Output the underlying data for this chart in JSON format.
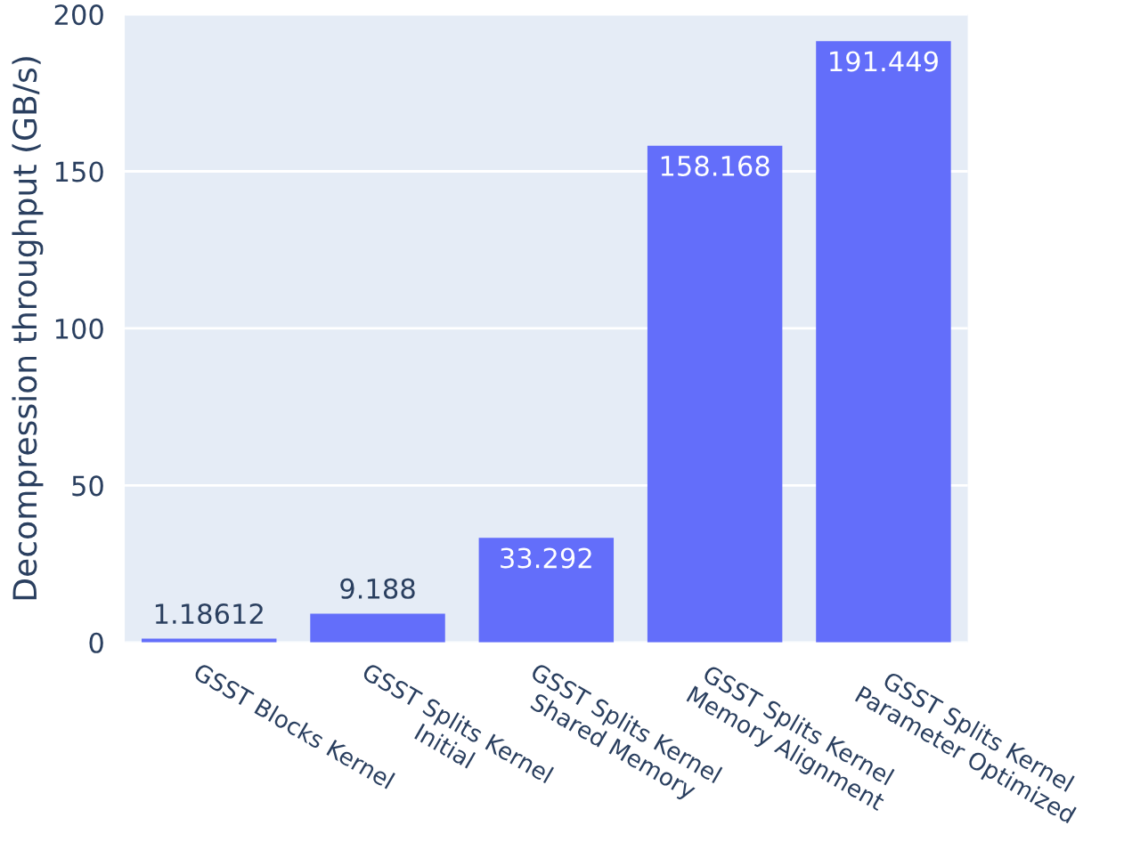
{
  "chart_data": {
    "type": "bar",
    "ylabel": "Decompression throughput (GB/s)",
    "categories": [
      "GSST Blocks Kernel",
      "GSST Splits Kernel\nInitial",
      "GSST Splits Kernel\nShared Memory",
      "GSST Splits Kernel\nMemory Alignment",
      "GSST Splits Kernel\nParameter Optimized"
    ],
    "values": [
      1.18612,
      9.188,
      33.292,
      158.168,
      191.449
    ],
    "color": "#636efa",
    "ylim": [
      0,
      200
    ],
    "yticks": [
      0,
      50,
      100,
      150,
      200
    ],
    "grid": "y",
    "data_labels": true
  }
}
